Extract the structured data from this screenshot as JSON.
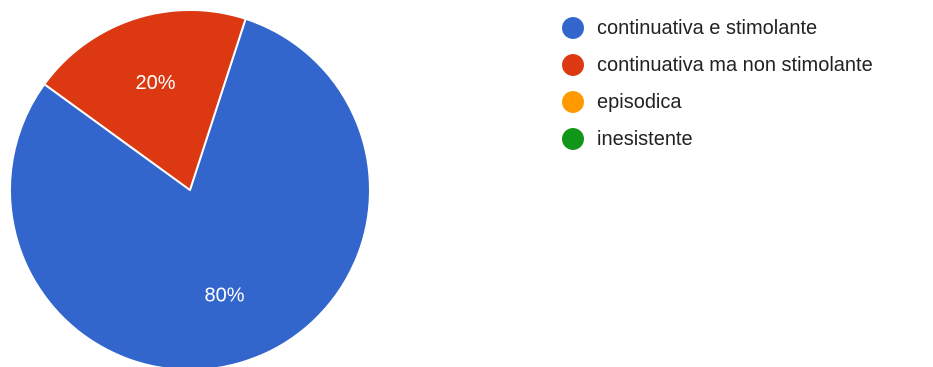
{
  "chart_data": {
    "type": "pie",
    "title": "",
    "categories": [
      "continuativa e stimolante",
      "continuativa ma non stimolante",
      "episodica",
      "inesistente"
    ],
    "values": [
      80,
      20,
      0,
      0
    ],
    "value_labels": [
      "80%",
      "20%",
      "",
      ""
    ],
    "colors": [
      "#3366cc",
      "#dc3912",
      "#ff9900",
      "#109618"
    ],
    "legend_position": "right"
  }
}
